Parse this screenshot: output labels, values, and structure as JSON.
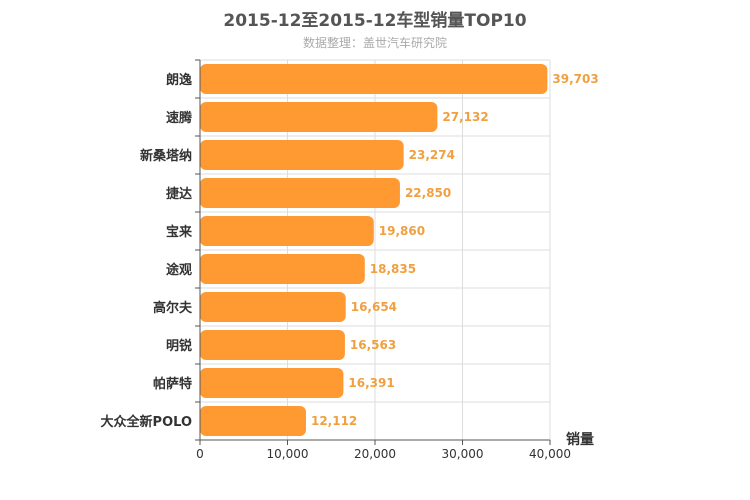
{
  "chart_data": {
    "type": "bar",
    "orientation": "horizontal",
    "title": "2015-12至2015-12车型销量TOP10",
    "subtitle": "数据整理：盖世汽车研究院",
    "categories": [
      "朗逸",
      "速腾",
      "新桑塔纳",
      "捷达",
      "宝来",
      "途观",
      "高尔夫",
      "明锐",
      "帕萨特",
      "大众全新POLO"
    ],
    "values": [
      39703,
      27132,
      23274,
      22850,
      19860,
      18835,
      16654,
      16563,
      16391,
      12112
    ],
    "value_labels": [
      "39,703",
      "27,132",
      "23,274",
      "22,850",
      "19,860",
      "18,835",
      "16,654",
      "16,563",
      "16,391",
      "12,112"
    ],
    "xlim": [
      0,
      40000
    ],
    "xticks": [
      0,
      10000,
      20000,
      30000,
      40000
    ],
    "xtick_labels": [
      "0",
      "10,000",
      "20,000",
      "30,000",
      "40,000"
    ],
    "xlabel": "销量",
    "ylabel": "",
    "grid": true,
    "colors": {
      "bar": "#ff9a33",
      "label": "#f0a040",
      "grid": "#dddddd",
      "axis": "#555555"
    }
  }
}
